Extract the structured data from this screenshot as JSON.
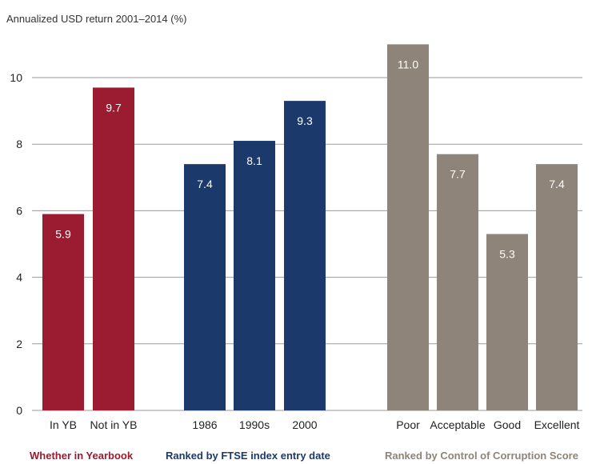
{
  "chart_data": {
    "type": "bar",
    "ylabel": "Annualized USD return 2001–2014 (%)",
    "ylim": [
      0,
      11.5
    ],
    "yticks": [
      0,
      2,
      4,
      6,
      8,
      10
    ],
    "grid": "horizontal",
    "groups": [
      {
        "name": "Whether in Yearbook",
        "color": "#9B1B30",
        "categories": [
          "In YB",
          "Not in YB"
        ],
        "values": [
          5.9,
          9.7
        ]
      },
      {
        "name": "Ranked by FTSE index entry date",
        "color": "#1B3A6B",
        "categories": [
          "1986",
          "1990s",
          "2000"
        ],
        "values": [
          7.4,
          8.1,
          9.3
        ]
      },
      {
        "name": "Ranked by Control of Corruption Score",
        "color": "#8E8479",
        "categories": [
          "Poor",
          "Acceptable",
          "Good",
          "Excellent"
        ],
        "values": [
          11.0,
          7.7,
          5.3,
          7.4
        ]
      }
    ]
  },
  "colors": {
    "grid": "#9a9a9a",
    "value_label": "#ffffff"
  }
}
